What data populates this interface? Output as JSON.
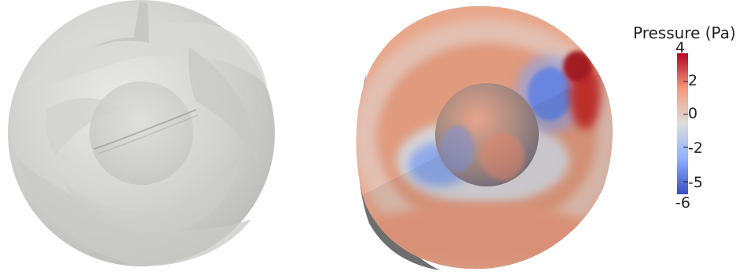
{
  "scene": {
    "left_view": "transparent-sphere-with-inner-ball",
    "right_view": "clipped-sphere-pressure-field"
  },
  "colorbar": {
    "title": "Pressure (Pa)",
    "max_label": "4",
    "min_label": "-6",
    "ticks": [
      "2",
      "0",
      "-2",
      "-5"
    ],
    "min": -6,
    "max": 4,
    "colormap": [
      "#3b4cc0",
      "#8db0fe",
      "#dddddd",
      "#f49a7b",
      "#b40426"
    ]
  }
}
